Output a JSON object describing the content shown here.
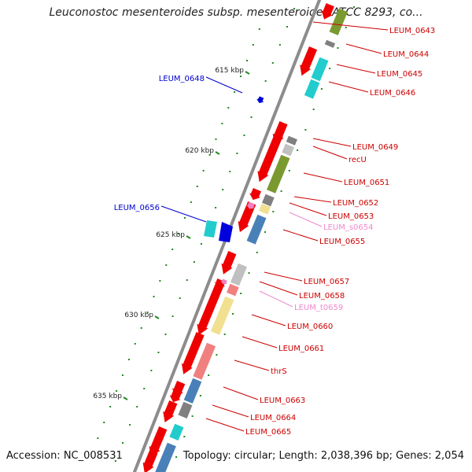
{
  "title": "Leuconostoc mesenteroides subsp. mesenteroides ATCC 8293, co...",
  "footer": {
    "accession": "Accession: NC_008531",
    "summary": "Topology: circular; Length: 2,038,396 bp; Genes: 2,054"
  },
  "colors": {
    "backbone": "#8c8c8c",
    "red": "#ee0000",
    "blue": "#0000dd",
    "cyan": "#22cccc",
    "olive": "#7a9a30",
    "grey": "#808080",
    "lightgrey": "#c0c0c0",
    "yellow": "#f0e090",
    "salmon": "#f08080",
    "pink": "#f080c0",
    "steel": "#4a80b8",
    "tick": "#228822"
  },
  "scale_labels": [
    "615 kbp",
    "620 kbp",
    "625 kbp",
    "630 kbp",
    "635 kbp"
  ],
  "gene_labels": [
    {
      "text": "LEUM_0643",
      "color": "#cc0000"
    },
    {
      "text": "LEUM_0644",
      "color": "#cc0000"
    },
    {
      "text": "LEUM_0645",
      "color": "#cc0000"
    },
    {
      "text": "LEUM_0646",
      "color": "#cc0000"
    },
    {
      "text": "LEUM_0648",
      "color": "#0000cc"
    },
    {
      "text": "LEUM_0649",
      "color": "#cc0000"
    },
    {
      "text": "recU",
      "color": "#cc0000"
    },
    {
      "text": "LEUM_0651",
      "color": "#cc0000"
    },
    {
      "text": "LEUM_0652",
      "color": "#cc0000"
    },
    {
      "text": "LEUM_0653",
      "color": "#cc0000"
    },
    {
      "text": "LEUM_s0654",
      "color": "#ee88cc"
    },
    {
      "text": "LEUM_0655",
      "color": "#cc0000"
    },
    {
      "text": "LEUM_0656",
      "color": "#0000cc"
    },
    {
      "text": "LEUM_0657",
      "color": "#cc0000"
    },
    {
      "text": "LEUM_0658",
      "color": "#cc0000"
    },
    {
      "text": "LEUM_t0659",
      "color": "#ee88cc"
    },
    {
      "text": "LEUM_0660",
      "color": "#cc0000"
    },
    {
      "text": "LEUM_0661",
      "color": "#cc0000"
    },
    {
      "text": "thrS",
      "color": "#cc0000"
    },
    {
      "text": "LEUM_0663",
      "color": "#cc0000"
    },
    {
      "text": "LEUM_0664",
      "color": "#cc0000"
    },
    {
      "text": "LEUM_0665",
      "color": "#cc0000"
    }
  ]
}
